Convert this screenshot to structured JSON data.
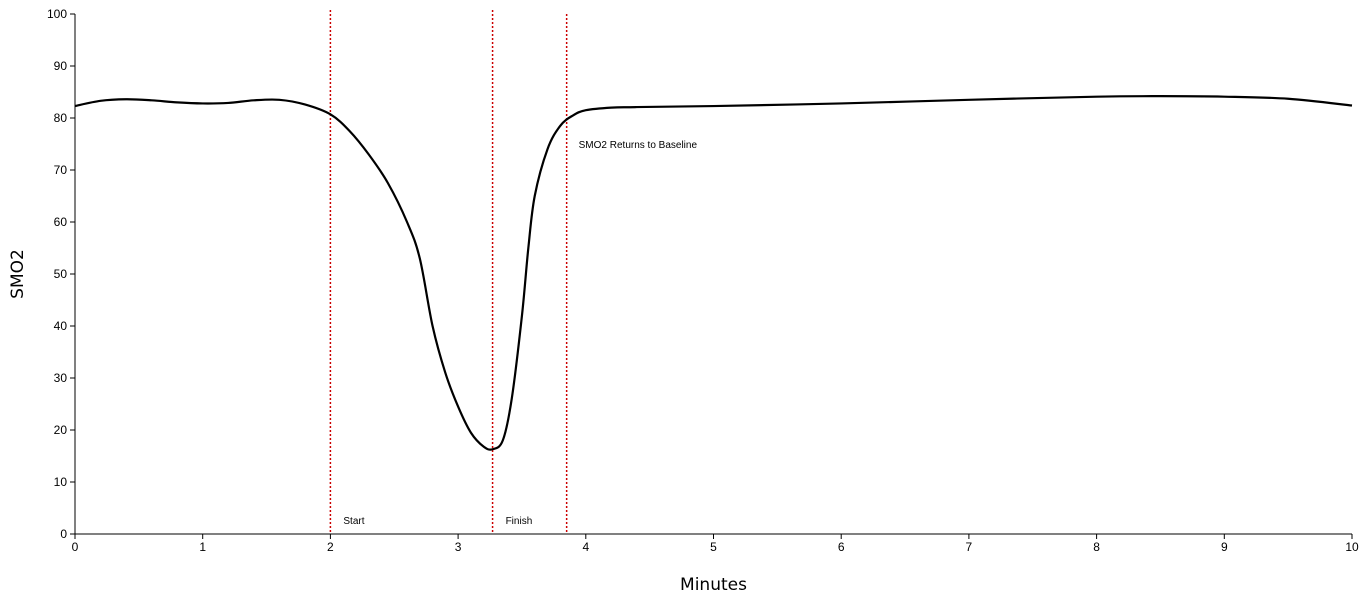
{
  "chart_data": {
    "type": "line",
    "title": "",
    "xlabel": "Minutes",
    "ylabel": "SMO2",
    "xlim": [
      0,
      10
    ],
    "ylim": [
      0,
      100
    ],
    "x_ticks": [
      "0",
      "1",
      "2",
      "3",
      "4",
      "5",
      "6",
      "7",
      "8",
      "9",
      "10"
    ],
    "y_ticks": [
      "0",
      "10",
      "20",
      "30",
      "40",
      "50",
      "60",
      "70",
      "80",
      "90",
      "100"
    ],
    "grid": false,
    "legend": "none",
    "series": [
      {
        "color": "#000000",
        "x": [
          0,
          0.2,
          0.4,
          0.6,
          0.8,
          1.0,
          1.2,
          1.4,
          1.6,
          1.8,
          2.0,
          2.15,
          2.3,
          2.45,
          2.6,
          2.7,
          2.8,
          2.9,
          3.0,
          3.1,
          3.2,
          3.27,
          3.35,
          3.42,
          3.5,
          3.55,
          3.6,
          3.7,
          3.8,
          3.9,
          4.0,
          4.2,
          4.4,
          5.0,
          6.0,
          7.0,
          8.0,
          8.5,
          9.0,
          9.5,
          10.0
        ],
        "y": [
          82.3,
          83.3,
          83.6,
          83.4,
          83.0,
          82.8,
          82.9,
          83.4,
          83.5,
          82.6,
          80.7,
          77.5,
          73.0,
          67.5,
          60.0,
          53.0,
          40.0,
          31.0,
          24.5,
          19.5,
          16.8,
          16.3,
          18.0,
          26.0,
          42.0,
          55.0,
          65.0,
          74.0,
          78.5,
          80.5,
          81.5,
          82.0,
          82.1,
          82.3,
          82.8,
          83.5,
          84.1,
          84.2,
          84.1,
          83.7,
          82.4
        ]
      }
    ],
    "markers": [
      {
        "x": 2.0,
        "label": "Start",
        "color": "#cc0000"
      },
      {
        "x": 3.27,
        "label": "Finish",
        "color": "#cc0000"
      },
      {
        "x": 3.85,
        "label": "SMO2 Returns to Baseline",
        "color": "#cc0000"
      }
    ]
  }
}
